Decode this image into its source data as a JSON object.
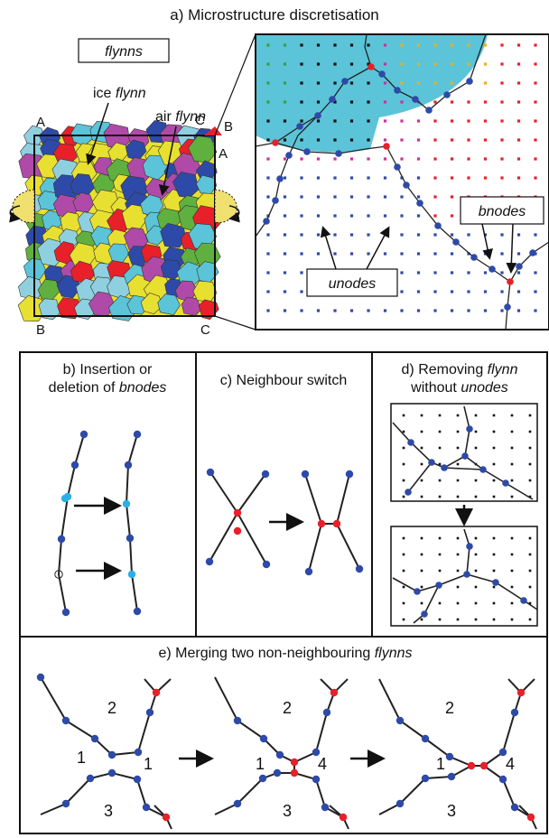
{
  "panel_a": {
    "title": "a) Microstructure discretisation",
    "flynns_box": "flynns",
    "ice_prefix": "ice ",
    "ice_flynn": "flynn",
    "air_prefix": "air ",
    "air_flynn": "flynn",
    "corner_A_top": "A",
    "corner_B_left": "B",
    "corner_C_bottom": "C",
    "corner_C_top": "C",
    "corner_B_right": "B",
    "corner_A_right": "A",
    "unodes_label": "unodes",
    "bnodes_label": "bnodes"
  },
  "panel_b": {
    "line1": "b) Insertion or",
    "line2_prefix": "deletion of ",
    "line2_italic": "bnodes"
  },
  "panel_c": {
    "title": "c) Neighbour switch"
  },
  "panel_d": {
    "line1_prefix": "d) Removing ",
    "line1_italic": "flynn",
    "line2_prefix": "without ",
    "line2_italic": "unodes"
  },
  "panel_e": {
    "title_prefix": "e) Merging two non-neighbouring ",
    "title_italic": "flynns",
    "step1": {
      "top": "2",
      "left": "1",
      "right": "1",
      "bottom": "3"
    },
    "step2": {
      "top": "2",
      "left": "1",
      "right": "4",
      "bottom": "3"
    },
    "step3": {
      "top": "2",
      "left": "1",
      "right": "4",
      "bottom": "3"
    }
  },
  "colors": {
    "bnode": "#2e4aa8",
    "triple_node": "#e8202a",
    "inserted_node": "#2ab0e8",
    "ice_fill": "#5bc4d8",
    "boundary_line": "#222222"
  }
}
